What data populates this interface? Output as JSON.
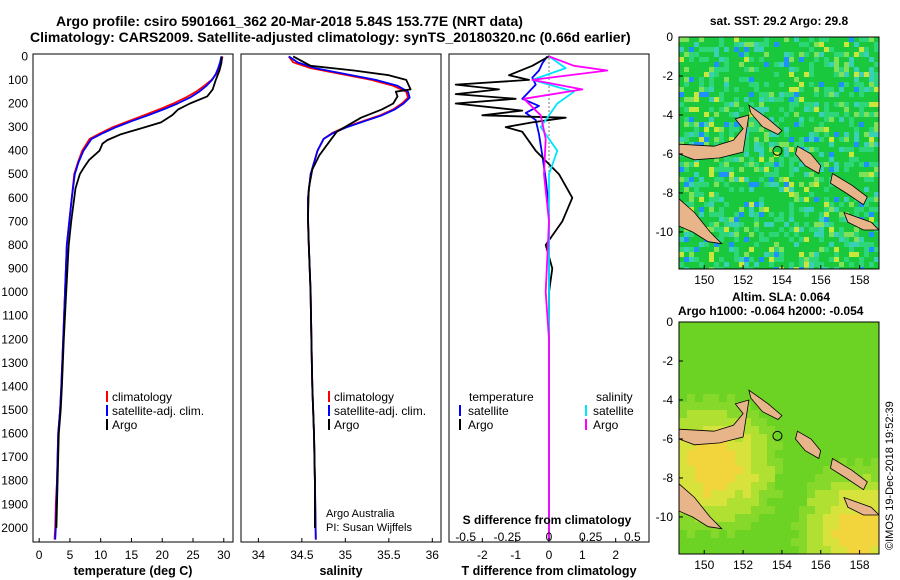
{
  "header": {
    "line1": "Argo profile: csiro 5901661_362 20-Mar-2018 5.84S 153.77E (NRT data)",
    "line2": "Climatology: CARS2009. Satellite-adjusted climatology: synTS_20180320.nc (0.66d earlier)"
  },
  "colors": {
    "climatology": "#ff0000",
    "satellite": "#0000ff",
    "argo": "#000000",
    "salinity_satellite": "#00e5ff",
    "salinity_argo": "#ff00ff",
    "land": "#e8b48a"
  },
  "depth_axis": {
    "ticks": [
      "0",
      "100",
      "200",
      "300",
      "400",
      "500",
      "600",
      "700",
      "800",
      "900",
      "1000",
      "1100",
      "1200",
      "1300",
      "1400",
      "1500",
      "1600",
      "1700",
      "1800",
      "1900",
      "2000"
    ]
  },
  "chart_data": [
    {
      "type": "line",
      "name": "temperature_profile",
      "xlabel": "temperature (deg C)",
      "ylabel": "depth",
      "xlim": [
        -1,
        31.5
      ],
      "ylim": [
        2060,
        -10
      ],
      "xticks": [
        "0",
        "5",
        "10",
        "15",
        "20",
        "25",
        "30"
      ],
      "legend": {
        "position": "middle-left",
        "labels": [
          "climatology",
          "satellite-adj. clim.",
          "Argo"
        ]
      },
      "series": [
        {
          "name": "climatology",
          "color": "#ff0000",
          "x": [
            29.8,
            29.6,
            29.3,
            28.8,
            28.0,
            26.8,
            25.5,
            23.8,
            21.8,
            19.5,
            17.0,
            14.5,
            12.0,
            10.0,
            8.2,
            7.0,
            6.3,
            5.7,
            5.3,
            4.9,
            4.5,
            4.2,
            3.9,
            3.6,
            3.4,
            3.1,
            2.9,
            2.7,
            2.6,
            2.5
          ],
          "y": [
            0,
            25,
            50,
            75,
            100,
            125,
            150,
            175,
            200,
            225,
            250,
            275,
            300,
            325,
            350,
            400,
            450,
            500,
            600,
            700,
            800,
            1000,
            1200,
            1400,
            1500,
            1600,
            1800,
            1900,
            2000,
            2050
          ]
        },
        {
          "name": "satellite-adj. clim.",
          "color": "#0000ff",
          "x": [
            29.6,
            29.4,
            29.1,
            28.7,
            28.1,
            27.2,
            26.0,
            24.5,
            22.5,
            20.2,
            17.7,
            15.0,
            12.5,
            10.4,
            8.5,
            7.2,
            6.4,
            5.8,
            5.3,
            4.9,
            4.5,
            4.2,
            3.9,
            3.6,
            3.4,
            3.1,
            2.9,
            2.8,
            2.7,
            2.6
          ],
          "y": [
            0,
            25,
            50,
            75,
            100,
            125,
            150,
            175,
            200,
            225,
            250,
            275,
            300,
            325,
            350,
            400,
            450,
            500,
            600,
            700,
            800,
            1000,
            1200,
            1400,
            1500,
            1600,
            1800,
            1900,
            2000,
            2050
          ]
        },
        {
          "name": "Argo",
          "color": "#000000",
          "x": [
            29.7,
            29.6,
            29.3,
            28.7,
            28.2,
            27.3,
            24.5,
            22.6,
            21.6,
            19.8,
            16.0,
            13.3,
            11.1,
            10.3,
            9.8,
            8.1,
            7.3,
            6.6,
            5.9,
            5.2,
            4.8,
            4.4,
            4.0,
            3.7,
            3.5,
            3.2,
            3.0,
            2.8
          ],
          "y": [
            0,
            30,
            60,
            100,
            140,
            170,
            200,
            225,
            250,
            280,
            310,
            330,
            355,
            370,
            400,
            440,
            470,
            500,
            560,
            700,
            800,
            1000,
            1200,
            1400,
            1500,
            1600,
            1800,
            2000
          ]
        }
      ]
    },
    {
      "type": "line",
      "name": "salinity_profile",
      "xlabel": "salinity",
      "ylabel": "depth",
      "xlim": [
        33.8,
        36.1
      ],
      "ylim": [
        2060,
        -10
      ],
      "xticks": [
        "34",
        "34.5",
        "35",
        "35.5",
        "36"
      ],
      "legend": {
        "position": "bottom-middle",
        "labels": [
          "climatology",
          "satellite-adj. clim.",
          "Argo"
        ]
      },
      "annotation": [
        "Argo Australia",
        "PI: Susan Wijffels"
      ],
      "series": [
        {
          "name": "climatology",
          "color": "#ff0000",
          "x": [
            34.35,
            34.4,
            34.6,
            34.95,
            35.3,
            35.55,
            35.7,
            35.72,
            35.65,
            35.55,
            35.4,
            35.2,
            35.0,
            34.85,
            34.75,
            34.68,
            34.6,
            34.57,
            34.57,
            34.58,
            34.6,
            34.61,
            34.62,
            34.64,
            34.65,
            34.66
          ],
          "y": [
            0,
            25,
            50,
            75,
            100,
            125,
            150,
            175,
            200,
            225,
            250,
            275,
            300,
            325,
            350,
            400,
            500,
            600,
            700,
            800,
            1000,
            1200,
            1400,
            1600,
            1800,
            2050
          ]
        },
        {
          "name": "satellite-adj. clim.",
          "color": "#0000ff",
          "x": [
            34.35,
            34.45,
            34.65,
            35.0,
            35.35,
            35.6,
            35.72,
            35.74,
            35.67,
            35.57,
            35.42,
            35.22,
            35.02,
            34.86,
            34.75,
            34.68,
            34.6,
            34.57,
            34.57,
            34.58,
            34.6,
            34.61,
            34.62,
            34.64,
            34.65,
            34.66
          ],
          "y": [
            0,
            25,
            50,
            75,
            100,
            125,
            150,
            175,
            200,
            225,
            250,
            275,
            300,
            325,
            350,
            400,
            500,
            600,
            700,
            800,
            1000,
            1200,
            1400,
            1600,
            1800,
            2050
          ]
        },
        {
          "name": "Argo",
          "color": "#000000",
          "x": [
            34.4,
            34.6,
            35.1,
            35.5,
            35.7,
            35.75,
            35.58,
            35.6,
            35.55,
            35.42,
            35.18,
            34.9,
            34.78,
            34.7,
            34.62,
            34.58,
            34.57,
            34.58,
            34.6,
            34.61,
            34.62,
            34.64,
            34.65,
            34.65
          ],
          "y": [
            0,
            40,
            60,
            80,
            100,
            140,
            150,
            170,
            200,
            225,
            260,
            320,
            380,
            420,
            480,
            560,
            680,
            800,
            1000,
            1200,
            1400,
            1600,
            1800,
            2000
          ]
        }
      ]
    },
    {
      "type": "line",
      "name": "difference_from_climatology",
      "xlabel": "T difference from climatology",
      "xlabel_top": "S difference from climatology",
      "ylabel": "depth",
      "xlim": [
        -3,
        3
      ],
      "s_scale": 0.2,
      "ylim": [
        2060,
        -10
      ],
      "xticks": [
        "-2",
        "-1",
        "0",
        "1",
        "2"
      ],
      "sticks": [
        "-0.5",
        "-0.25",
        "0",
        "0.25",
        "0.5"
      ],
      "legend": {
        "position": "middle",
        "groups": [
          "temperature",
          "salinity"
        ],
        "labels": [
          "satellite",
          "Argo"
        ]
      },
      "series": [
        {
          "name": "temperature satellite",
          "color": "#0000ff",
          "x": [
            -0.05,
            -0.2,
            -0.3,
            -0.5,
            -0.4,
            -0.6,
            -0.8,
            -0.3,
            -0.7,
            -0.4,
            -0.3,
            -0.2,
            -0.1,
            0.0,
            0.0,
            0.0,
            0.0,
            0.0,
            0.0
          ],
          "y": [
            0,
            30,
            60,
            90,
            120,
            150,
            180,
            210,
            240,
            270,
            330,
            420,
            520,
            650,
            800,
            1000,
            1400,
            1800,
            2050
          ]
        },
        {
          "name": "temperature Argo",
          "color": "#000000",
          "x": [
            0.0,
            -0.5,
            -1.2,
            -0.6,
            -2.8,
            -1.5,
            -2.8,
            -1.0,
            -2.8,
            -0.8,
            -2.0,
            0.5,
            -0.5,
            -1.3,
            -0.8,
            -0.6,
            -0.4,
            0.3,
            0.7,
            0.4,
            -0.1,
            0.1,
            0.0,
            0.0,
            0.0
          ],
          "y": [
            0,
            40,
            80,
            100,
            120,
            140,
            160,
            180,
            200,
            230,
            250,
            260,
            280,
            300,
            320,
            360,
            400,
            500,
            600,
            700,
            800,
            900,
            1000,
            1500,
            2050
          ]
        },
        {
          "name": "salinity satellite",
          "color": "#00e5ff",
          "s": [
            0.0,
            0.1,
            -0.1,
            0.15,
            0.05,
            -0.05,
            0.05,
            0.0,
            0.0,
            0.0,
            0.0
          ],
          "y": [
            0,
            50,
            100,
            150,
            200,
            300,
            400,
            500,
            800,
            1400,
            2050
          ]
        },
        {
          "name": "salinity Argo",
          "color": "#ff00ff",
          "s": [
            0.0,
            0.15,
            0.35,
            -0.1,
            0.2,
            -0.15,
            -0.05,
            -0.02,
            -0.03,
            0.0,
            -0.02,
            0.0,
            0.0,
            0.0
          ],
          "y": [
            0,
            40,
            60,
            100,
            140,
            180,
            250,
            350,
            500,
            700,
            1000,
            1200,
            1600,
            2050
          ]
        }
      ]
    }
  ],
  "maps": {
    "sst": {
      "title": "sat. SST: 29.2 Argo: 29.8",
      "xticks": [
        "150",
        "152",
        "154",
        "156",
        "158"
      ],
      "yticks": [
        "0",
        "-2",
        "-4",
        "-6",
        "-8",
        "-10"
      ],
      "xlim": [
        148.7,
        159.0
      ],
      "ylim": [
        0,
        -11.9
      ],
      "float_lon": 153.77,
      "float_lat": -5.84
    },
    "sla": {
      "title1": "Altim. SLA: 0.064",
      "title2": "Argo h1000: -0.064 h2000: -0.054",
      "xticks": [
        "150",
        "152",
        "154",
        "156",
        "158"
      ],
      "yticks": [
        "0",
        "-2",
        "-4",
        "-6",
        "-8",
        "-10"
      ],
      "xlim": [
        148.7,
        159.0
      ],
      "ylim": [
        0,
        -11.9
      ],
      "float_lon": 153.77,
      "float_lat": -5.84
    }
  },
  "credit": "©IMOS 19-Dec-2018 19:52:39"
}
